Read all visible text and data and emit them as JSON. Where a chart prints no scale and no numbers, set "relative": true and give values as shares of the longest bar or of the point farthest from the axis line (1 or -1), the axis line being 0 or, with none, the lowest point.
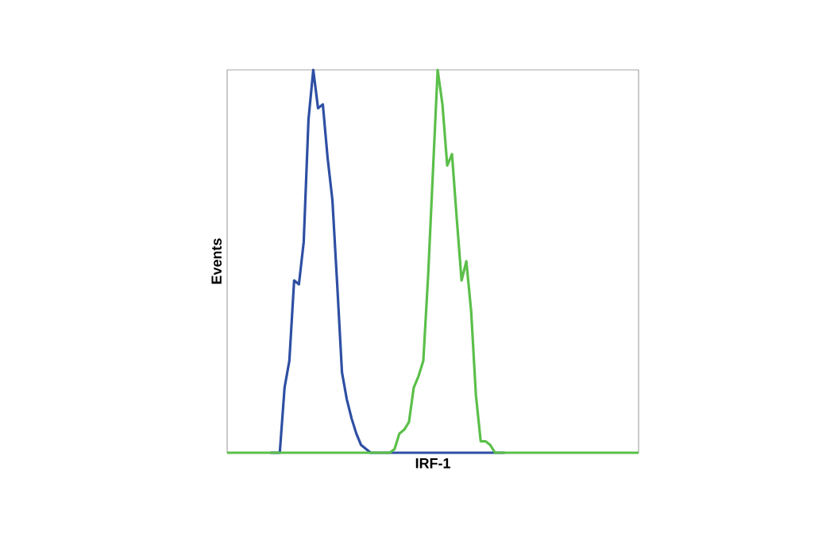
{
  "chart_data": {
    "type": "line",
    "relative": true,
    "xlabel": "IRF-1",
    "ylabel": "Events",
    "categories": [
      null,
      null,
      null,
      null,
      null,
      null,
      null,
      null,
      null,
      null,
      null,
      null,
      null,
      null,
      null,
      null,
      null,
      null,
      null,
      null,
      null,
      null,
      null,
      null,
      null,
      null,
      null,
      null,
      null,
      null,
      null,
      null,
      null,
      null,
      null,
      null,
      null,
      null,
      null,
      null,
      null,
      null,
      null,
      null,
      null,
      null,
      null,
      null,
      null,
      null,
      null,
      null,
      null,
      null,
      null,
      null,
      null,
      null,
      null,
      null,
      null,
      null,
      null,
      null,
      null,
      null,
      null,
      null,
      null,
      null,
      null,
      null,
      null,
      null,
      null,
      null,
      null,
      null,
      null,
      null,
      null,
      null,
      null,
      null,
      null,
      null,
      null
    ],
    "series": [
      {
        "color": "#2e4fa3",
        "values": [
          null,
          null,
          null,
          null,
          null,
          null,
          null,
          null,
          null,
          0,
          0,
          0,
          0.17,
          0.24,
          0.45,
          0.44,
          0.55,
          0.87,
          1.0,
          0.9,
          0.91,
          0.77,
          0.66,
          0.44,
          0.21,
          0.14,
          0.09,
          0.05,
          0.02,
          0.01,
          0,
          0,
          0,
          0,
          0,
          0,
          0,
          0,
          0,
          0,
          0,
          0,
          0,
          0,
          0,
          0,
          0,
          0,
          0,
          0,
          0,
          0,
          0,
          0,
          0,
          0,
          0,
          0,
          0,
          null,
          null,
          null,
          null,
          null,
          null,
          null,
          null,
          null,
          null,
          null,
          null,
          null,
          null,
          null,
          null,
          null,
          null,
          null,
          null,
          null,
          null,
          null,
          null,
          null,
          null,
          null,
          null
        ]
      },
      {
        "color": "#5bbf4a",
        "values": [
          0,
          0,
          0,
          0,
          0,
          0,
          0,
          0,
          0,
          0,
          0,
          0,
          0,
          0,
          0,
          0,
          0,
          0,
          0,
          0,
          0,
          0,
          0,
          0,
          0,
          0,
          0,
          0,
          0,
          0,
          0,
          0,
          0,
          0,
          0,
          0.01,
          0.05,
          0.06,
          0.08,
          0.17,
          0.2,
          0.24,
          0.46,
          0.73,
          1.0,
          0.91,
          0.75,
          0.78,
          0.61,
          0.45,
          0.5,
          0.37,
          0.15,
          0.03,
          0.03,
          0.02,
          0,
          0,
          0,
          0,
          0,
          0,
          0,
          0,
          0,
          0,
          0,
          0,
          0,
          0,
          0,
          0,
          0,
          0,
          0,
          0,
          0,
          0,
          0,
          0,
          0,
          0,
          0,
          0,
          0,
          0,
          0
        ]
      }
    ]
  }
}
